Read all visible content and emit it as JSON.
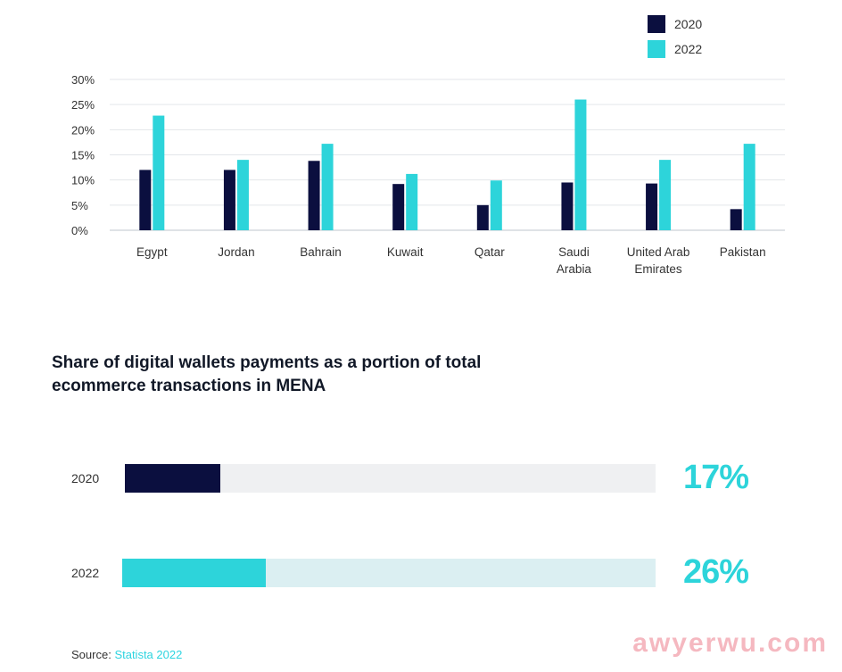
{
  "chart_data": [
    {
      "type": "bar",
      "categories": [
        "Egypt",
        "Jordan",
        "Bahrain",
        "Kuwait",
        "Qatar",
        "Saudi Arabia",
        "United Arab Emirates",
        "Pakistan"
      ],
      "category_lines": [
        [
          "Egypt"
        ],
        [
          "Jordan"
        ],
        [
          "Bahrain"
        ],
        [
          "Kuwait"
        ],
        [
          "Qatar"
        ],
        [
          "Saudi",
          "Arabia"
        ],
        [
          "United Arab",
          "Emirates"
        ],
        [
          "Pakistan"
        ]
      ],
      "series": [
        {
          "name": "2020",
          "color": "#0b0f3f",
          "values": [
            12,
            12,
            13.8,
            9.2,
            5,
            9.5,
            9.3,
            4.2
          ]
        },
        {
          "name": "2022",
          "color": "#2dd4da",
          "values": [
            22.8,
            14,
            17.2,
            11.2,
            9.9,
            26,
            14,
            17.2
          ]
        }
      ],
      "ylim": [
        0,
        30
      ],
      "yticks": [
        "0%",
        "5%",
        "10%",
        "15%",
        "20%",
        "25%",
        "30%"
      ],
      "grid": true,
      "legend": "top-right"
    },
    {
      "type": "bar",
      "orientation": "horizontal",
      "title": "Share of digital wallets payments as a portion of total ecommerce transactions in MENA",
      "rows": [
        {
          "label": "2020",
          "value": 17,
          "value_label": "17%",
          "fill_fraction": 0.18,
          "fill_color": "#0b0f3f",
          "track_color": "#eff0f2"
        },
        {
          "label": "2022",
          "value": 26,
          "value_label": "26%",
          "fill_fraction": 0.27,
          "fill_color": "#2dd4da",
          "track_color": "#dbeff2"
        }
      ],
      "value_color": "#2dd4da"
    }
  ],
  "source": {
    "prefix": "Source:",
    "name": "Statista 2022"
  },
  "watermark": "awyerwu.com"
}
